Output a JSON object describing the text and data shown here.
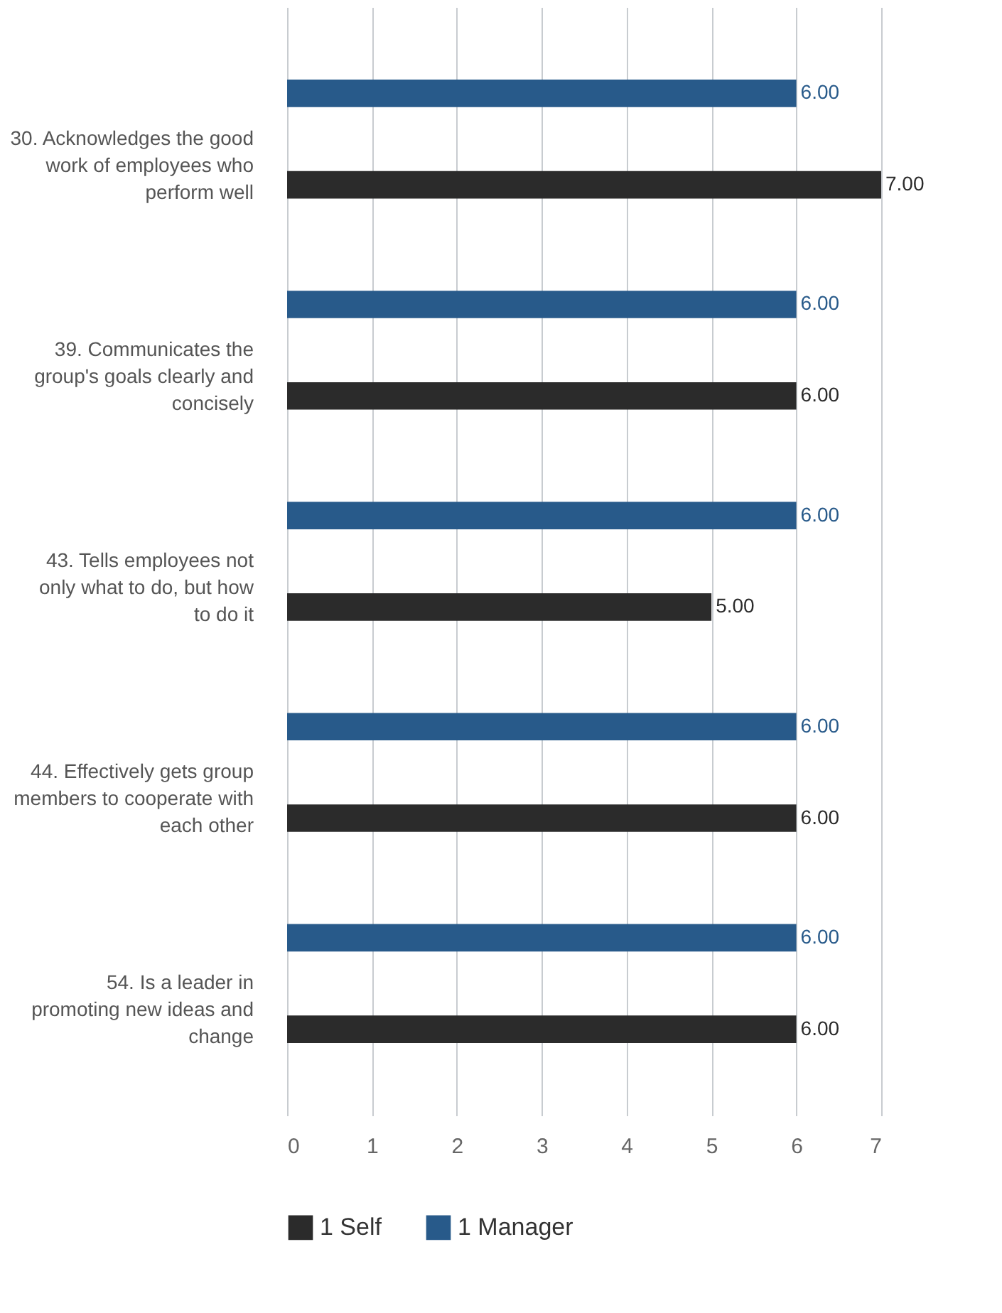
{
  "chart_data": {
    "type": "bar",
    "orientation": "horizontal",
    "categories": [
      "30. Acknowledges the good work of employees who perform well",
      "39. Communicates the group's goals clearly and concisely",
      "43. Tells employees not only what to do, but how to do it",
      "44. Effectively gets group members to cooperate with each other",
      "54. Is a leader in promoting new ideas and change"
    ],
    "series": [
      {
        "name": "1 Self",
        "color": "#2b2b2b",
        "values": [
          7,
          6,
          5,
          6,
          6
        ],
        "value_labels": [
          "7.00",
          "6.00",
          "5.00",
          "6.00",
          "6.00"
        ]
      },
      {
        "name": "1 Manager",
        "color": "#285a8a",
        "values": [
          6,
          6,
          6,
          6,
          6
        ],
        "value_labels": [
          "6.00",
          "6.00",
          "6.00",
          "6.00",
          "6.00"
        ]
      }
    ],
    "xlim": [
      0,
      7
    ],
    "xticks": [
      0,
      1,
      2,
      3,
      4,
      5,
      6,
      7
    ],
    "grid": "x",
    "legend": "bottom"
  }
}
